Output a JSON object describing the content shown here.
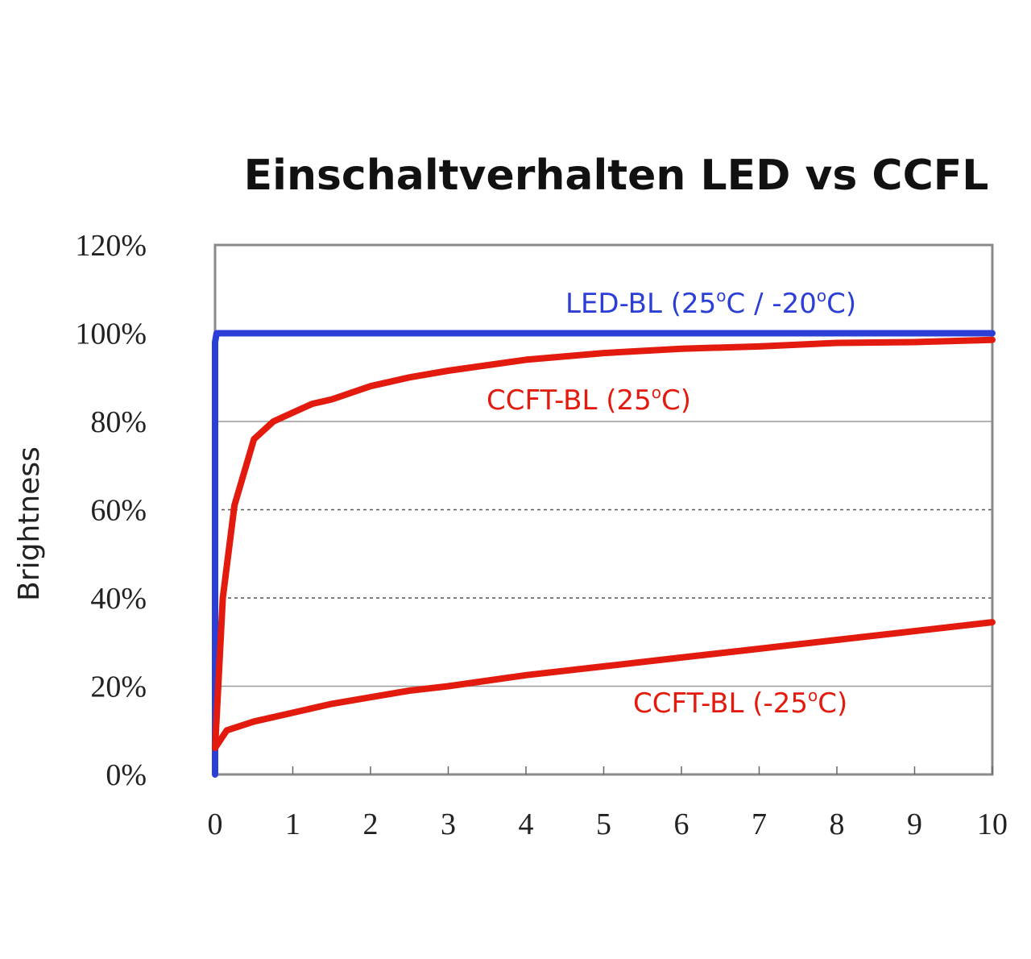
{
  "chart_data": {
    "type": "line",
    "title": "Einschaltverhalten LED vs CCFL",
    "xlabel": "",
    "ylabel": "Brightness",
    "xlim": [
      0,
      10
    ],
    "ylim": [
      0,
      1.2
    ],
    "x_ticks": [
      "0",
      "1",
      "2",
      "3",
      "4",
      "5",
      "6",
      "7",
      "8",
      "9",
      "10"
    ],
    "y_ticks": [
      "0%",
      "20%",
      "40%",
      "60%",
      "80%",
      "100%",
      "120%"
    ],
    "grid": {
      "solid": [
        0.2,
        0.8
      ],
      "dashed": [
        0.4,
        0.6
      ]
    },
    "legend": "inline labels",
    "series": [
      {
        "name": "LED-BL (25ºC / -20ºC)",
        "color": "#2b3fd6",
        "x": [
          0,
          0,
          0.02,
          10
        ],
        "y": [
          0,
          0.98,
          1.0,
          1.0
        ]
      },
      {
        "name": "CCFT-BL (25ºC)",
        "color": "#e31b0e",
        "x": [
          0,
          0.1,
          0.25,
          0.5,
          0.75,
          1.0,
          1.25,
          1.5,
          2.0,
          2.5,
          3.0,
          4.0,
          5.0,
          6.0,
          7.0,
          8.0,
          9.0,
          10.0
        ],
        "y": [
          0.06,
          0.4,
          0.61,
          0.76,
          0.8,
          0.82,
          0.84,
          0.85,
          0.88,
          0.9,
          0.915,
          0.94,
          0.955,
          0.965,
          0.97,
          0.978,
          0.98,
          0.985
        ]
      },
      {
        "name": "CCFT-BL (-25ºC)",
        "color": "#e31b0e",
        "x": [
          0,
          0.15,
          0.5,
          1.0,
          1.5,
          2.0,
          2.5,
          3.0,
          4.0,
          5.0,
          6.0,
          7.0,
          8.0,
          9.0,
          10.0
        ],
        "y": [
          0.06,
          0.1,
          0.12,
          0.14,
          0.16,
          0.175,
          0.19,
          0.2,
          0.225,
          0.245,
          0.265,
          0.285,
          0.305,
          0.325,
          0.345
        ]
      }
    ],
    "annotations": [
      {
        "series": 0,
        "text": "LED-BL (25",
        "sup": "o",
        "tail": "C / -20",
        "sup2": "o",
        "end": "C)"
      },
      {
        "series": 1,
        "text": "CCFT-BL (25",
        "sup": "o",
        "tail": "C)"
      },
      {
        "series": 2,
        "text": "CCFT-BL (-25",
        "sup": "o",
        "tail": "C)"
      }
    ]
  }
}
